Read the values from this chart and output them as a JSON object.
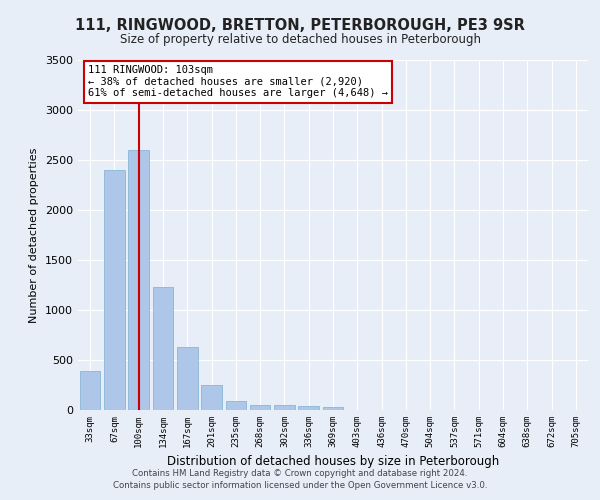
{
  "title": "111, RINGWOOD, BRETTON, PETERBOROUGH, PE3 9SR",
  "subtitle": "Size of property relative to detached houses in Peterborough",
  "xlabel": "Distribution of detached houses by size in Peterborough",
  "ylabel": "Number of detached properties",
  "categories": [
    "33sqm",
    "67sqm",
    "100sqm",
    "134sqm",
    "167sqm",
    "201sqm",
    "235sqm",
    "268sqm",
    "302sqm",
    "336sqm",
    "369sqm",
    "403sqm",
    "436sqm",
    "470sqm",
    "504sqm",
    "537sqm",
    "571sqm",
    "604sqm",
    "638sqm",
    "672sqm",
    "705sqm"
  ],
  "values": [
    390,
    2400,
    2600,
    1230,
    630,
    250,
    90,
    55,
    50,
    40,
    35,
    0,
    0,
    0,
    0,
    0,
    0,
    0,
    0,
    0,
    0
  ],
  "bar_color": "#aec6e8",
  "bar_edge_color": "#7bafd4",
  "vline_x_index": 2,
  "vline_color": "#cc0000",
  "annotation_text": "111 RINGWOOD: 103sqm\n← 38% of detached houses are smaller (2,920)\n61% of semi-detached houses are larger (4,648) →",
  "annotation_box_color": "#ffffff",
  "annotation_box_edge_color": "#cc0000",
  "ylim": [
    0,
    3500
  ],
  "yticks": [
    0,
    500,
    1000,
    1500,
    2000,
    2500,
    3000,
    3500
  ],
  "footer": "Contains HM Land Registry data © Crown copyright and database right 2024.\nContains public sector information licensed under the Open Government Licence v3.0.",
  "bg_color": "#e8eef8",
  "plot_bg_color": "#e8eef8"
}
